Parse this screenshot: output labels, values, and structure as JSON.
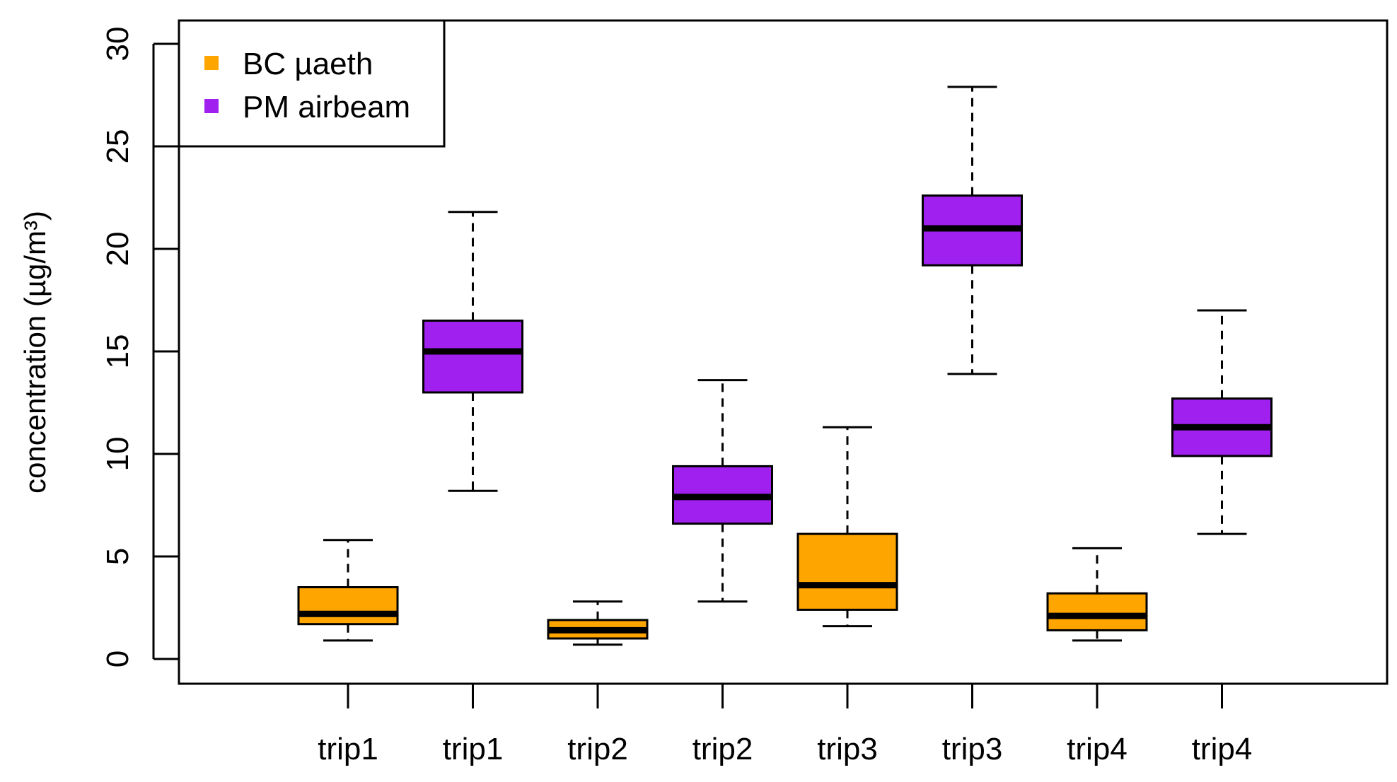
{
  "chart_data": {
    "type": "boxplot",
    "title": "",
    "xlabel": "",
    "ylabel": "concentration (µg/m³)",
    "ylim": [
      0,
      30
    ],
    "yticks": [
      0,
      5,
      10,
      15,
      20,
      25,
      30
    ],
    "grid": false,
    "legend_position": "top-left",
    "legend": [
      {
        "label": "BC µaeth",
        "color": "#FFA500"
      },
      {
        "label": "PM airbeam",
        "color": "#A020F0"
      }
    ],
    "categories": [
      "trip1",
      "trip1",
      "trip2",
      "trip2",
      "trip3",
      "trip3",
      "trip4",
      "trip4"
    ],
    "boxes": [
      {
        "label": "trip1",
        "series": "BC µaeth",
        "color": "#FFA500",
        "whisker_low": 0.9,
        "q1": 1.7,
        "median": 2.2,
        "q3": 3.5,
        "whisker_high": 5.8
      },
      {
        "label": "trip1",
        "series": "PM airbeam",
        "color": "#A020F0",
        "whisker_low": 8.2,
        "q1": 13.0,
        "median": 15.0,
        "q3": 16.5,
        "whisker_high": 21.8
      },
      {
        "label": "trip2",
        "series": "BC µaeth",
        "color": "#FFA500",
        "whisker_low": 0.7,
        "q1": 1.0,
        "median": 1.4,
        "q3": 1.9,
        "whisker_high": 2.8
      },
      {
        "label": "trip2",
        "series": "PM airbeam",
        "color": "#A020F0",
        "whisker_low": 2.8,
        "q1": 6.6,
        "median": 7.9,
        "q3": 9.4,
        "whisker_high": 13.6
      },
      {
        "label": "trip3",
        "series": "BC µaeth",
        "color": "#FFA500",
        "whisker_low": 1.6,
        "q1": 2.4,
        "median": 3.6,
        "q3": 6.1,
        "whisker_high": 11.3
      },
      {
        "label": "trip3",
        "series": "PM airbeam",
        "color": "#A020F0",
        "whisker_low": 13.9,
        "q1": 19.2,
        "median": 21.0,
        "q3": 22.6,
        "whisker_high": 27.9
      },
      {
        "label": "trip4",
        "series": "BC µaeth",
        "color": "#FFA500",
        "whisker_low": 0.9,
        "q1": 1.4,
        "median": 2.1,
        "q3": 3.2,
        "whisker_high": 5.4
      },
      {
        "label": "trip4",
        "series": "PM airbeam",
        "color": "#A020F0",
        "whisker_low": 6.1,
        "q1": 9.9,
        "median": 11.3,
        "q3": 12.7,
        "whisker_high": 17.0
      }
    ]
  }
}
